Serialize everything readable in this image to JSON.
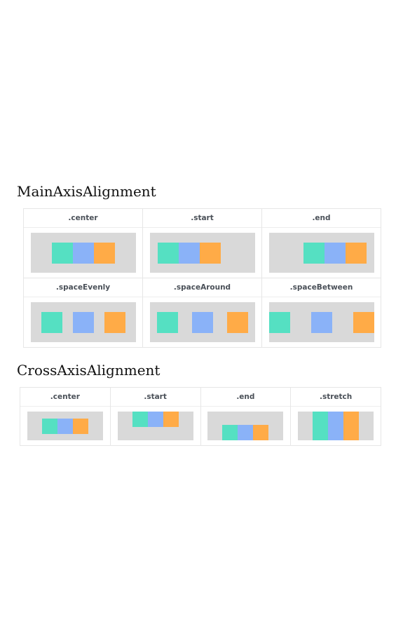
{
  "colors": {
    "box_1": "#55e0c2",
    "box_2": "#8ab2f8",
    "box_3": "#ffab47",
    "frame_bg": "#d9d9d9"
  },
  "main_axis": {
    "title": "MainAxisAlignment",
    "cells": [
      {
        "label": ".center",
        "alignment": "center"
      },
      {
        "label": ".start",
        "alignment": "start"
      },
      {
        "label": ".end",
        "alignment": "end"
      },
      {
        "label": ".spaceEvenly",
        "alignment": "spaceEvenly"
      },
      {
        "label": ".spaceAround",
        "alignment": "spaceAround"
      },
      {
        "label": ".spaceBetween",
        "alignment": "spaceBetween"
      }
    ]
  },
  "cross_axis": {
    "title": "CrossAxisAlignment",
    "cells": [
      {
        "label": ".center",
        "alignment": "center"
      },
      {
        "label": ".start",
        "alignment": "start"
      },
      {
        "label": ".end",
        "alignment": "end"
      },
      {
        "label": ".stretch",
        "alignment": "stretch"
      }
    ]
  }
}
